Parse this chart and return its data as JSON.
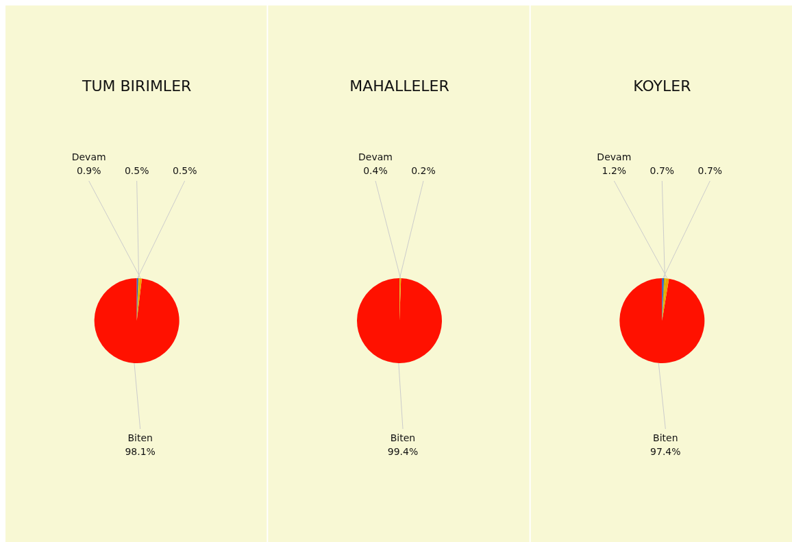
{
  "chart_data": [
    {
      "type": "pie",
      "title": "TUM BIRIMLER",
      "categories": [
        "Biten",
        "Devam",
        null,
        null
      ],
      "values": [
        98.1,
        0.9,
        0.5,
        0.5
      ],
      "colors": [
        "#ff1100",
        "#f0a000",
        "#c8b400",
        "#1f5fd0"
      ],
      "value_labels": [
        "98.1%",
        "0.9%",
        "0.5%",
        "0.5%"
      ]
    },
    {
      "type": "pie",
      "title": "MAHALLELER",
      "categories": [
        "Biten",
        "Devam",
        null
      ],
      "values": [
        99.4,
        0.4,
        0.2
      ],
      "colors": [
        "#ff1100",
        "#f0a000",
        "#c8b400"
      ],
      "value_labels": [
        "99.4%",
        "0.4%",
        "0.2%"
      ]
    },
    {
      "type": "pie",
      "title": "KOYLER",
      "categories": [
        "Biten",
        "Devam",
        null,
        null
      ],
      "values": [
        97.4,
        1.2,
        0.7,
        0.7
      ],
      "colors": [
        "#ff1100",
        "#f0a000",
        "#c8b400",
        "#1f5fd0"
      ],
      "value_labels": [
        "97.4%",
        "1.2%",
        "0.7%",
        "0.7%"
      ]
    }
  ]
}
